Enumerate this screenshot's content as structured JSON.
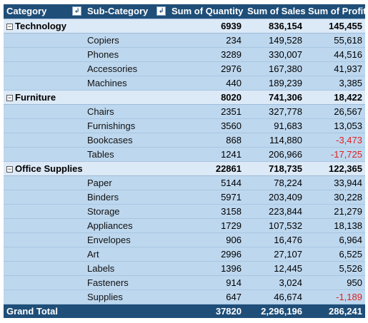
{
  "headers": {
    "category": "Category",
    "sub_category": "Sub-Category",
    "quantity": "Sum of Quantity",
    "sales": "Sum of Sales",
    "profit": "Sum of Profit",
    "filter_glyph": "↲"
  },
  "toggle_glyph": "−",
  "groups": [
    {
      "name": "Technology",
      "quantity": "6939",
      "sales": "836,154",
      "profit": "145,455",
      "items": [
        {
          "name": "Copiers",
          "quantity": "234",
          "sales": "149,528",
          "profit": "55,618"
        },
        {
          "name": "Phones",
          "quantity": "3289",
          "sales": "330,007",
          "profit": "44,516"
        },
        {
          "name": "Accessories",
          "quantity": "2976",
          "sales": "167,380",
          "profit": "41,937"
        },
        {
          "name": "Machines",
          "quantity": "440",
          "sales": "189,239",
          "profit": "3,385"
        }
      ]
    },
    {
      "name": "Furniture",
      "quantity": "8020",
      "sales": "741,306",
      "profit": "18,422",
      "items": [
        {
          "name": "Chairs",
          "quantity": "2351",
          "sales": "327,778",
          "profit": "26,567"
        },
        {
          "name": "Furnishings",
          "quantity": "3560",
          "sales": "91,683",
          "profit": "13,053"
        },
        {
          "name": "Bookcases",
          "quantity": "868",
          "sales": "114,880",
          "profit": "-3,473"
        },
        {
          "name": "Tables",
          "quantity": "1241",
          "sales": "206,966",
          "profit": "-17,725"
        }
      ]
    },
    {
      "name": "Office Supplies",
      "quantity": "22861",
      "sales": "718,735",
      "profit": "122,365",
      "items": [
        {
          "name": "Paper",
          "quantity": "5144",
          "sales": "78,224",
          "profit": "33,944"
        },
        {
          "name": "Binders",
          "quantity": "5971",
          "sales": "203,409",
          "profit": "30,228"
        },
        {
          "name": "Storage",
          "quantity": "3158",
          "sales": "223,844",
          "profit": "21,279"
        },
        {
          "name": "Appliances",
          "quantity": "1729",
          "sales": "107,532",
          "profit": "18,138"
        },
        {
          "name": "Envelopes",
          "quantity": "906",
          "sales": "16,476",
          "profit": "6,964"
        },
        {
          "name": "Art",
          "quantity": "2996",
          "sales": "27,107",
          "profit": "6,525"
        },
        {
          "name": "Labels",
          "quantity": "1396",
          "sales": "12,445",
          "profit": "5,526"
        },
        {
          "name": "Fasteners",
          "quantity": "914",
          "sales": "3,024",
          "profit": "950"
        },
        {
          "name": "Supplies",
          "quantity": "647",
          "sales": "46,674",
          "profit": "-1,189"
        }
      ]
    }
  ],
  "grand_total": {
    "label": "Grand Total",
    "quantity": "37820",
    "sales": "2,296,196",
    "profit": "286,241"
  },
  "colors": {
    "header": "#1f4e78",
    "category_row": "#dce9f6",
    "item_row": "#bdd7ee",
    "negative": "#e02020"
  }
}
